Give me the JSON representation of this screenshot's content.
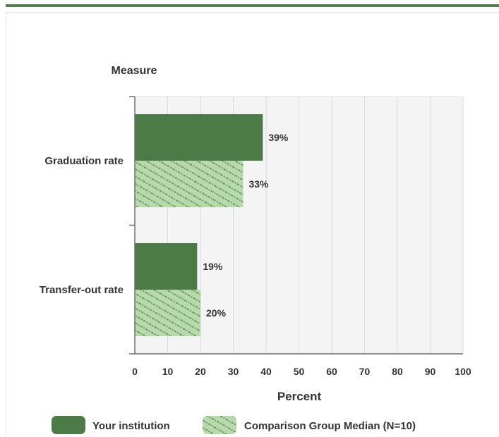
{
  "chart_data": {
    "type": "bar",
    "orientation": "horizontal",
    "title": "",
    "ylabel": "Measure",
    "xlabel": "Percent",
    "categories": [
      "Graduation rate",
      "Transfer-out rate"
    ],
    "series": [
      {
        "name": "Your institution",
        "values": [
          39,
          19
        ],
        "labels": [
          "39%",
          "19%"
        ],
        "color": "#4d7b47",
        "pattern": "solid"
      },
      {
        "name": "Comparison Group Median (N=10)",
        "values": [
          33,
          20
        ],
        "labels": [
          "33%",
          "20%"
        ],
        "color": "#b8d9ab",
        "pattern": "hatched"
      }
    ],
    "xlim": [
      0,
      100
    ],
    "xticks": [
      "0",
      "10",
      "20",
      "30",
      "40",
      "50",
      "60",
      "70",
      "80",
      "90",
      "100"
    ],
    "grid": true,
    "legend_position": "bottom",
    "plot_background": "#f4f4f4",
    "grid_color": "#d4dde8"
  }
}
